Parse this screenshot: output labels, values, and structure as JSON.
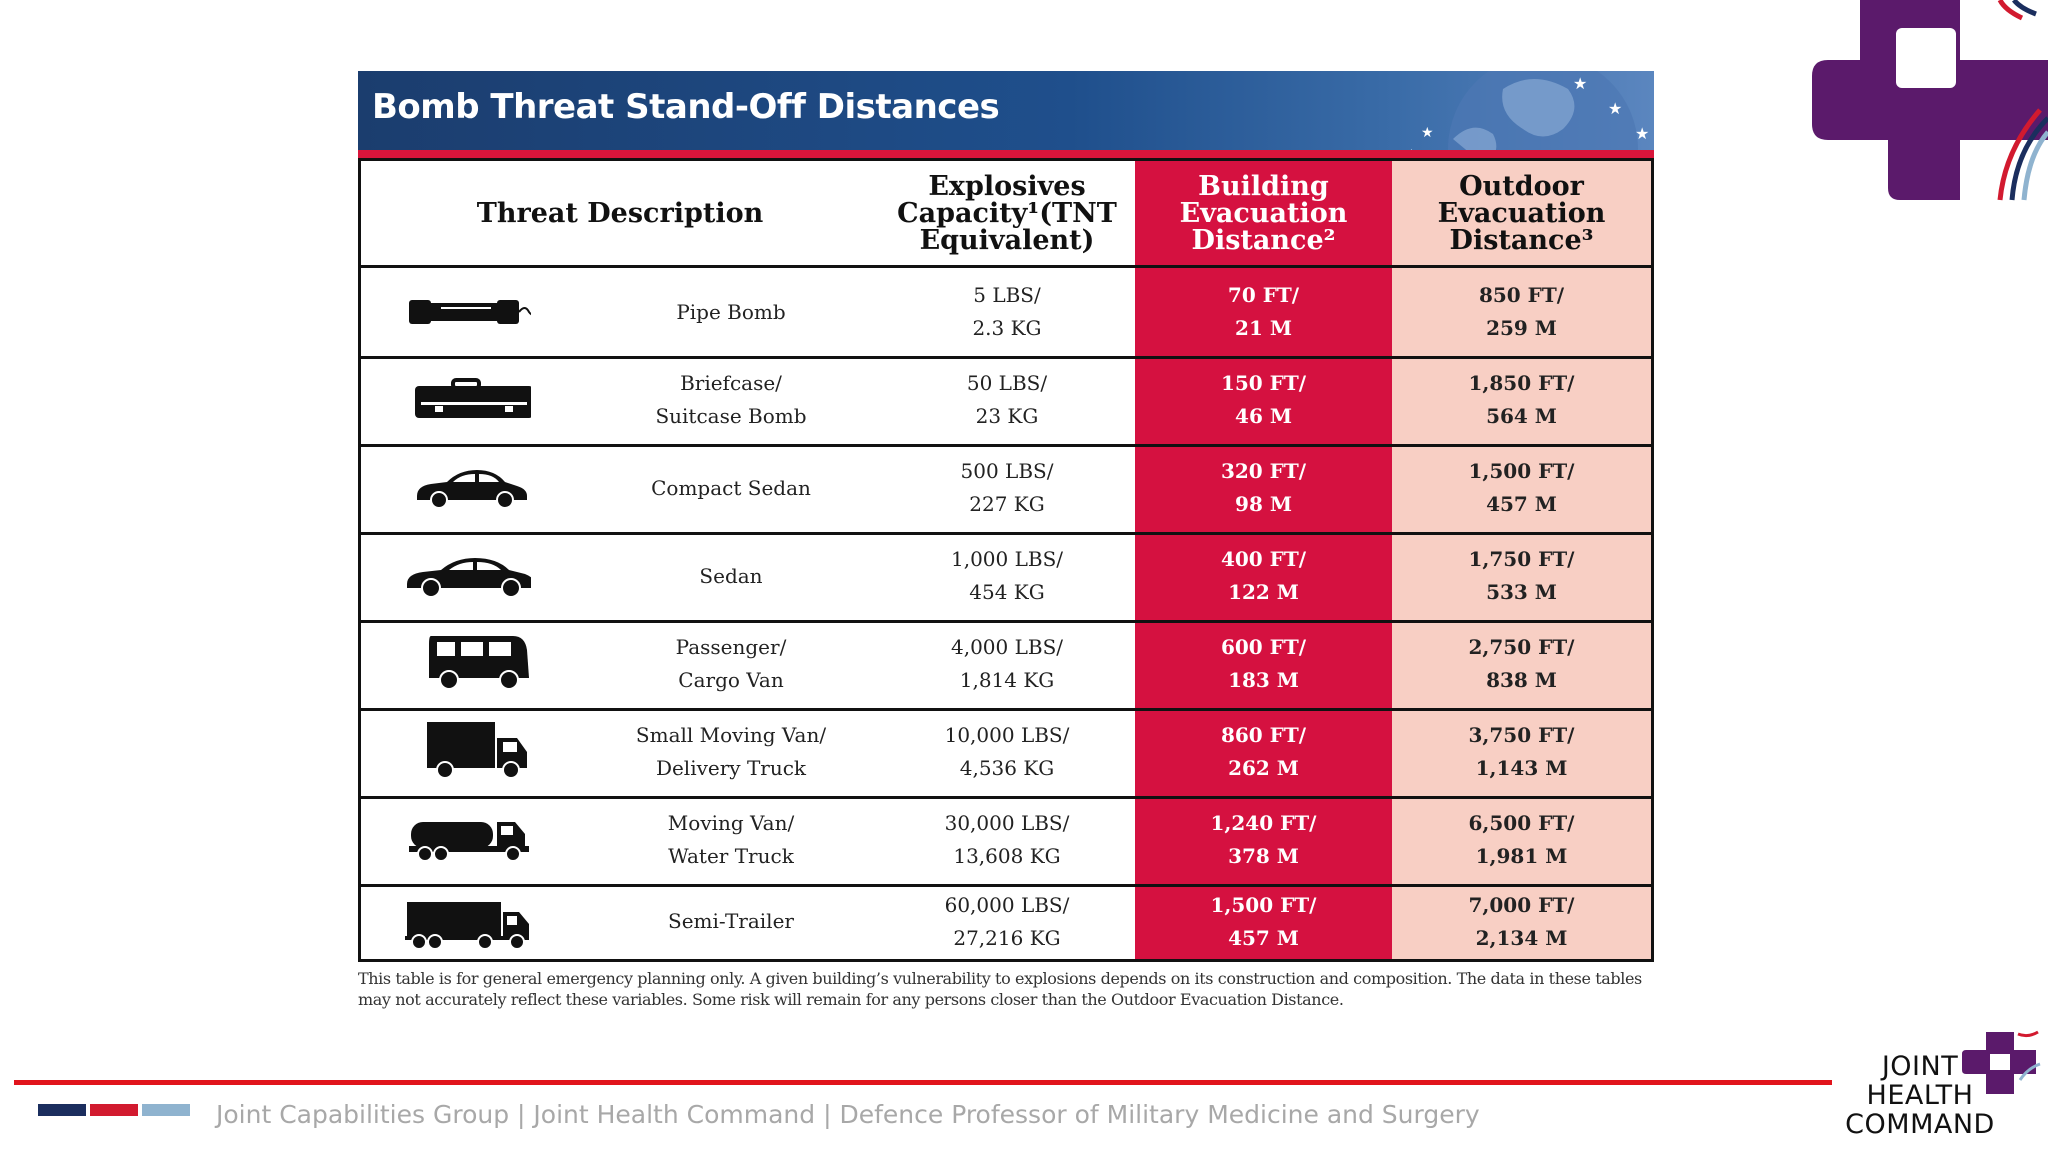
{
  "banner": {
    "title": "Bomb Threat Stand-Off Distances"
  },
  "table": {
    "headers": {
      "threat": "Threat Description",
      "explosives": [
        "Explosives",
        "Capacity¹(TNT",
        "Equivalent)"
      ],
      "building": [
        "Building",
        "Evacuation",
        "Distance²"
      ],
      "outdoor": [
        "Outdoor",
        "Evacuation",
        "Distance³"
      ]
    },
    "rows": [
      {
        "icon": "pipe-bomb-icon",
        "desc": [
          "Pipe Bomb"
        ],
        "explosives": [
          "5 LBS/",
          "2.3 KG"
        ],
        "building": [
          "70 FT/",
          "21 M"
        ],
        "outdoor": [
          "850 FT/",
          "259 M"
        ]
      },
      {
        "icon": "briefcase-icon",
        "desc": [
          "Briefcase/",
          "Suitcase Bomb"
        ],
        "explosives": [
          "50 LBS/",
          "23 KG"
        ],
        "building": [
          "150 FT/",
          "46 M"
        ],
        "outdoor": [
          "1,850 FT/",
          "564 M"
        ]
      },
      {
        "icon": "compact-sedan-icon",
        "desc": [
          "Compact Sedan"
        ],
        "explosives": [
          "500 LBS/",
          "227 KG"
        ],
        "building": [
          "320 FT/",
          "98 M"
        ],
        "outdoor": [
          "1,500 FT/",
          "457 M"
        ]
      },
      {
        "icon": "sedan-icon",
        "desc": [
          "Sedan"
        ],
        "explosives": [
          "1,000 LBS/",
          "454 KG"
        ],
        "building": [
          "400 FT/",
          "122 M"
        ],
        "outdoor": [
          "1,750 FT/",
          "533 M"
        ]
      },
      {
        "icon": "van-icon",
        "desc": [
          "Passenger/",
          "Cargo Van"
        ],
        "explosives": [
          "4,000 LBS/",
          "1,814 KG"
        ],
        "building": [
          "600 FT/",
          "183 M"
        ],
        "outdoor": [
          "2,750 FT/",
          "838 M"
        ]
      },
      {
        "icon": "delivery-truck-icon",
        "desc": [
          "Small Moving Van/",
          "Delivery Truck"
        ],
        "explosives": [
          "10,000 LBS/",
          "4,536 KG"
        ],
        "building": [
          "860 FT/",
          "262 M"
        ],
        "outdoor": [
          "3,750 FT/",
          "1,143 M"
        ]
      },
      {
        "icon": "water-truck-icon",
        "desc": [
          "Moving Van/",
          "Water Truck"
        ],
        "explosives": [
          "30,000 LBS/",
          "13,608 KG"
        ],
        "building": [
          "1,240 FT/",
          "378 M"
        ],
        "outdoor": [
          "6,500 FT/",
          "1,981 M"
        ]
      },
      {
        "icon": "semi-trailer-icon",
        "desc": [
          "Semi-Trailer"
        ],
        "explosives": [
          "60,000 LBS/",
          "27,216 KG"
        ],
        "building": [
          "1,500 FT/",
          "457 M"
        ],
        "outdoor": [
          "7,000 FT/",
          "2,134 M"
        ]
      }
    ],
    "colors": {
      "building_column": "#d51140",
      "outdoor_column": "#f8cfc4"
    }
  },
  "footnote": "This table is for general emergency planning only. A given building’s vulnerability to explosions depends on its construction and composition. The data in these tables may not accurately reflect these variables. Some risk will remain for any persons closer than the Outdoor Evacuation Distance.",
  "footer": {
    "text": "Joint Capabilities Group | Joint Health Command | Defence Professor of Military Medicine and Surgery",
    "bar_colors": [
      "#1b2e5e",
      "#d21a2f",
      "#8fb3cf"
    ],
    "logo_lines": [
      "JOINT",
      "HEALTH",
      "COMMAND"
    ]
  }
}
